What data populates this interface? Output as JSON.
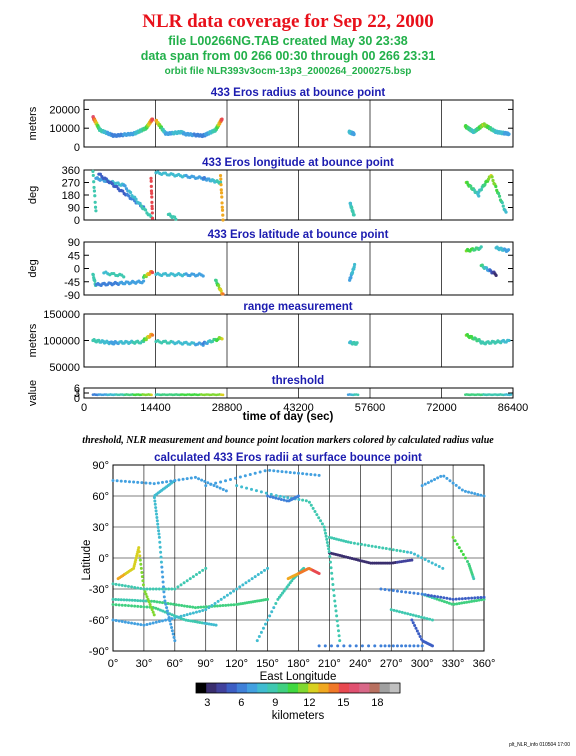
{
  "header": {
    "title": "NLR data coverage for Sep 22, 2000",
    "file_line": "file L00266NG.TAB created May 30 23:38",
    "span_line": "data span from 00 266 00:30 through 00 266 23:31",
    "orbit_line": "orbit file NLR393v3ocm-13p3_2000264_2000275.bsp"
  },
  "colors": {
    "title": "#e8101a",
    "subtitle": "#22b04a",
    "panel_title": "#1c1cb0"
  },
  "timeseries": {
    "xlabel": "time of day (sec)",
    "xticks": [
      0,
      14400,
      28800,
      43200,
      57600,
      72000,
      86400
    ],
    "xlim": [
      0,
      86400
    ],
    "caption": "threshold, NLR measurement and bounce point location markers colored by calculated radius value",
    "panels": [
      {
        "title": "433 Eros radius at bounce point",
        "ylabel": "meters",
        "ylim": [
          0,
          25000
        ],
        "yticks": [
          0,
          10000,
          20000
        ]
      },
      {
        "title": "433 Eros longitude at bounce point",
        "ylabel": "deg",
        "ylim": [
          0,
          360
        ],
        "yticks": [
          0,
          90,
          180,
          270,
          360
        ]
      },
      {
        "title": "433 Eros latitude at bounce point",
        "ylabel": "deg",
        "ylim": [
          -90,
          90
        ],
        "yticks": [
          -90,
          -45,
          0,
          45,
          90
        ]
      },
      {
        "title": "range measurement",
        "ylabel": "meters",
        "ylim": [
          50000,
          150000
        ],
        "yticks": [
          50000,
          100000,
          150000
        ]
      },
      {
        "title": "threshold",
        "ylabel": "value",
        "ylim": [
          0,
          6
        ],
        "yticks": [
          0,
          3,
          6
        ]
      }
    ]
  },
  "map": {
    "title": "calculated 433 Eros radii at surface bounce point",
    "xlabel": "East Longitude",
    "ylabel": "Latitude",
    "xticks": [
      "0°",
      "30°",
      "60°",
      "90°",
      "120°",
      "150°",
      "180°",
      "210°",
      "240°",
      "270°",
      "300°",
      "330°",
      "360°"
    ],
    "yticks": [
      "-90°",
      "-60°",
      "-30°",
      "0°",
      "30°",
      "60°",
      "90°"
    ]
  },
  "colorbar": {
    "label": "kilometers",
    "ticks": [
      "3",
      "6",
      "9",
      "12",
      "15",
      "18"
    ],
    "colors": [
      "#000000",
      "#3a2e6e",
      "#41419c",
      "#3c5ec4",
      "#3f80d8",
      "#42a0e0",
      "#40bcd0",
      "#3fc8b0",
      "#40d080",
      "#40d840",
      "#80d830",
      "#d8d020",
      "#f0a820",
      "#f07828",
      "#e84850",
      "#e05070",
      "#d86888",
      "#b87060",
      "#a0a0a0",
      "#c0c0c0"
    ]
  },
  "footer": {
    "stamp": "plt_NLR_info 010504 17:00"
  },
  "chart_data": [
    {
      "type": "scatter",
      "title": "433 Eros radius at bounce point",
      "xlabel": "",
      "ylabel": "meters",
      "xlim": [
        0,
        86400
      ],
      "ylim": [
        0,
        25000
      ],
      "series": [
        {
          "x": [
            1800,
            3000,
            6000,
            10000,
            12000,
            13600,
            15000,
            17000,
            20000,
            24000,
            26000,
            27600,
            54000,
            77500,
            79000,
            81000,
            83000,
            85000
          ],
          "values": [
            9000,
            12000,
            7000,
            6500,
            10000,
            13500,
            12000,
            7000,
            8000,
            6000,
            9000,
            13500,
            7500,
            10000,
            7500,
            12000,
            8500,
            7500
          ]
        }
      ]
    },
    {
      "type": "scatter",
      "title": "433 Eros longitude at bounce point",
      "xlabel": "",
      "ylabel": "deg",
      "xlim": [
        0,
        86400
      ],
      "ylim": [
        0,
        360
      ],
      "series": [
        {
          "x": [
            2000,
            4000,
            8000,
            12000,
            14000,
            16000,
            20000,
            24000,
            28000,
            54000,
            77000,
            80000,
            83000
          ],
          "values": [
            350,
            300,
            200,
            90,
            30,
            340,
            330,
            300,
            270,
            100,
            270,
            180,
            300
          ]
        }
      ]
    },
    {
      "type": "scatter",
      "title": "433 Eros latitude at bounce point",
      "xlabel": "",
      "ylabel": "deg",
      "xlim": [
        0,
        86400
      ],
      "ylim": [
        -90,
        90
      ],
      "series": [
        {
          "x": [
            2000,
            4000,
            8000,
            12000,
            14000,
            16000,
            20000,
            24000,
            27000,
            54000,
            78000,
            80000,
            83000
          ],
          "values": [
            -20,
            -55,
            -50,
            -45,
            -25,
            -20,
            -20,
            -20,
            -40,
            -30,
            60,
            0,
            60
          ]
        }
      ]
    },
    {
      "type": "scatter",
      "title": "range measurement",
      "xlabel": "",
      "ylabel": "meters",
      "xlim": [
        0,
        86400
      ],
      "ylim": [
        50000,
        150000
      ],
      "series": [
        {
          "x": [
            2000,
            6000,
            10000,
            13000,
            16000,
            20000,
            24000,
            27000,
            54000,
            78000,
            82000,
            85000
          ],
          "values": [
            98000,
            96000,
            97000,
            105000,
            95000,
            92000,
            95000,
            102000,
            94000,
            108000,
            95000,
            97000
          ]
        }
      ]
    },
    {
      "type": "scatter",
      "title": "threshold",
      "xlabel": "time of day (sec)",
      "ylabel": "value",
      "xlim": [
        0,
        86400
      ],
      "ylim": [
        0,
        6
      ],
      "series": [
        {
          "x": [
            1800,
            13600,
            14400,
            28000,
            53000,
            55000,
            77000,
            86000
          ],
          "values": [
            2,
            2,
            2,
            2,
            2,
            2,
            2,
            2
          ]
        }
      ]
    },
    {
      "type": "scatter",
      "title": "calculated 433 Eros radii at surface bounce point",
      "xlabel": "East Longitude",
      "ylabel": "Latitude",
      "xlim": [
        0,
        360
      ],
      "ylim": [
        -90,
        90
      ],
      "series": [
        {
          "x": [
            20,
            45,
            90,
            150,
            175,
            195,
            215,
            240,
            270,
            300,
            330,
            355
          ],
          "values": [
            -40,
            -45,
            -50,
            -15,
            -10,
            20,
            5,
            -5,
            -5,
            -30,
            -35,
            -40
          ]
        }
      ]
    }
  ]
}
